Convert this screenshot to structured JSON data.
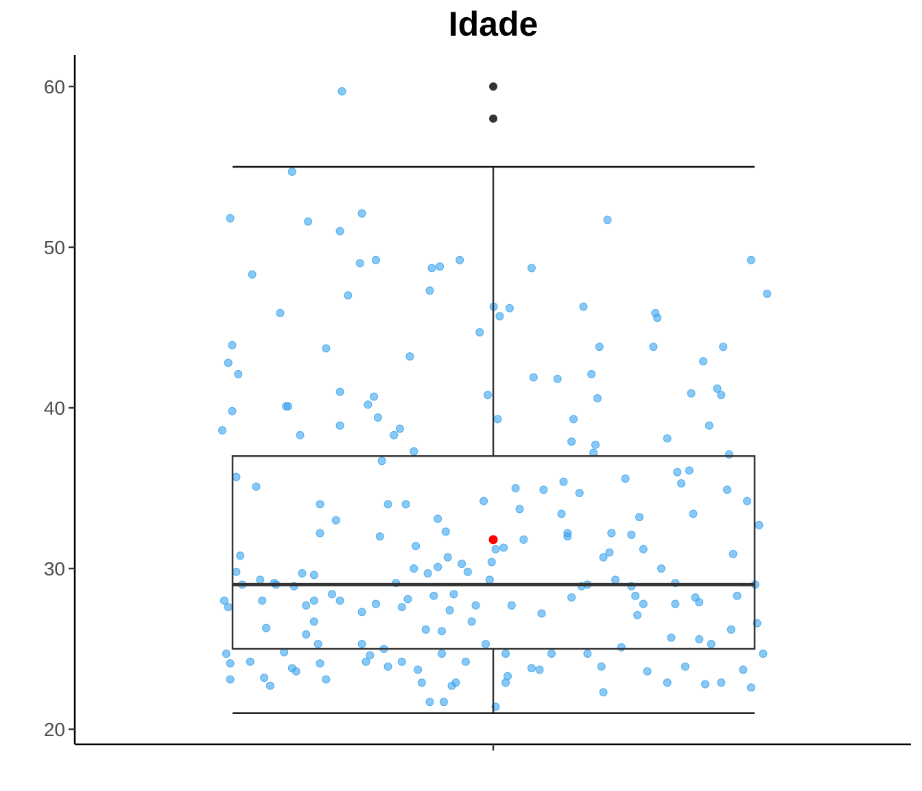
{
  "chart_data": {
    "type": "boxplot",
    "title": "Idade",
    "xlabel": "",
    "ylabel": "",
    "ylim": [
      19,
      62
    ],
    "yticks": [
      20,
      30,
      40,
      50,
      60
    ],
    "xticks": [
      ""
    ],
    "box": {
      "min_whisker": 21,
      "q1": 25,
      "median": 29,
      "q3": 37,
      "max_whisker": 55,
      "mean": 31.8,
      "outliers": [
        58,
        60
      ]
    },
    "jitter_points": [
      [
        -0.65,
        38.6
      ],
      [
        -0.62,
        42.8
      ],
      [
        -0.61,
        51.8
      ],
      [
        -0.6,
        39.8
      ],
      [
        -0.6,
        43.9
      ],
      [
        -0.58,
        35.7
      ],
      [
        -0.57,
        42.1
      ],
      [
        -0.62,
        27.6
      ],
      [
        -0.64,
        28.0
      ],
      [
        -0.63,
        24.7
      ],
      [
        -0.61,
        24.1
      ],
      [
        -0.61,
        23.1
      ],
      [
        -0.58,
        29.8
      ],
      [
        -0.56,
        30.8
      ],
      [
        -0.55,
        29.0
      ],
      [
        -0.5,
        48.3
      ],
      [
        -0.48,
        35.1
      ],
      [
        -0.46,
        29.3
      ],
      [
        -0.45,
        28.0
      ],
      [
        -0.43,
        26.3
      ],
      [
        -0.41,
        22.7
      ],
      [
        -0.38,
        29.0
      ],
      [
        -0.36,
        45.9
      ],
      [
        -0.34,
        24.8
      ],
      [
        -0.33,
        40.1
      ],
      [
        -0.32,
        40.1
      ],
      [
        -0.3,
        54.7
      ],
      [
        -0.3,
        23.8
      ],
      [
        -0.29,
        28.9
      ],
      [
        -0.26,
        38.3
      ],
      [
        -0.25,
        29.7
      ],
      [
        -0.23,
        27.7
      ],
      [
        -0.23,
        25.9
      ],
      [
        -0.22,
        51.6
      ],
      [
        -0.19,
        29.6
      ],
      [
        -0.19,
        28.0
      ],
      [
        -0.19,
        26.7
      ],
      [
        -0.17,
        25.3
      ],
      [
        -0.16,
        34.0
      ],
      [
        -0.16,
        32.2
      ],
      [
        -0.16,
        24.1
      ],
      [
        -0.13,
        43.7
      ],
      [
        -0.13,
        23.1
      ],
      [
        -0.08,
        33.0
      ],
      [
        -0.06,
        41.0
      ],
      [
        -0.06,
        38.9
      ],
      [
        -0.06,
        28.0
      ],
      [
        -0.06,
        51.0
      ],
      [
        -0.05,
        59.7
      ],
      [
        -0.02,
        47.0
      ],
      [
        0.04,
        49.0
      ],
      [
        0.05,
        52.1
      ],
      [
        0.05,
        27.3
      ],
      [
        0.05,
        25.3
      ],
      [
        0.07,
        24.2
      ],
      [
        0.08,
        40.2
      ],
      [
        0.09,
        24.6
      ],
      [
        0.11,
        40.7
      ],
      [
        0.12,
        49.2
      ],
      [
        0.13,
        39.4
      ],
      [
        0.14,
        32.0
      ],
      [
        0.15,
        36.7
      ],
      [
        0.16,
        25.0
      ],
      [
        0.18,
        34.0
      ],
      [
        0.18,
        23.9
      ],
      [
        0.21,
        38.3
      ],
      [
        0.22,
        29.1
      ],
      [
        0.24,
        38.7
      ],
      [
        0.25,
        27.6
      ],
      [
        0.27,
        34.0
      ],
      [
        0.28,
        28.1
      ],
      [
        0.29,
        43.2
      ],
      [
        0.31,
        37.3
      ],
      [
        0.32,
        31.4
      ],
      [
        0.33,
        23.7
      ],
      [
        0.35,
        22.9
      ],
      [
        0.37,
        26.2
      ],
      [
        0.38,
        29.7
      ],
      [
        0.39,
        21.7
      ],
      [
        0.39,
        47.3
      ],
      [
        0.4,
        48.7
      ],
      [
        0.41,
        28.3
      ],
      [
        0.43,
        33.1
      ],
      [
        0.43,
        30.1
      ],
      [
        0.44,
        48.8
      ],
      [
        0.45,
        24.7
      ],
      [
        0.47,
        32.3
      ],
      [
        0.48,
        30.7
      ],
      [
        0.49,
        27.4
      ],
      [
        0.5,
        22.7
      ],
      [
        0.51,
        28.4
      ],
      [
        0.54,
        49.2
      ],
      [
        0.55,
        30.3
      ],
      [
        0.57,
        24.2
      ],
      [
        0.6,
        26.7
      ],
      [
        0.62,
        27.7
      ],
      [
        0.64,
        44.7
      ],
      [
        0.66,
        34.2
      ],
      [
        0.67,
        25.3
      ],
      [
        0.68,
        40.8
      ],
      [
        0.7,
        30.4
      ],
      [
        0.71,
        46.3
      ],
      [
        0.72,
        31.2
      ],
      [
        0.73,
        39.3
      ],
      [
        0.74,
        45.7
      ],
      [
        0.76,
        31.3
      ],
      [
        0.77,
        24.7
      ],
      [
        0.78,
        23.3
      ],
      [
        0.79,
        46.2
      ],
      [
        0.8,
        27.7
      ],
      [
        0.82,
        35.0
      ],
      [
        0.84,
        33.7
      ],
      [
        0.86,
        31.8
      ],
      [
        0.9,
        48.7
      ],
      [
        0.91,
        41.9
      ],
      [
        0.94,
        23.7
      ],
      [
        0.96,
        34.9
      ],
      [
        1.0,
        24.7
      ],
      [
        1.03,
        41.8
      ],
      [
        1.05,
        33.4
      ],
      [
        1.06,
        35.4
      ],
      [
        1.08,
        32.0
      ],
      [
        1.1,
        37.9
      ],
      [
        1.1,
        28.2
      ],
      [
        1.11,
        39.3
      ],
      [
        1.14,
        34.7
      ],
      [
        1.16,
        46.3
      ],
      [
        1.18,
        24.7
      ],
      [
        1.2,
        42.1
      ],
      [
        1.21,
        37.2
      ],
      [
        1.22,
        37.7
      ],
      [
        1.23,
        40.6
      ],
      [
        1.24,
        43.8
      ],
      [
        1.25,
        23.9
      ],
      [
        1.26,
        30.7
      ],
      [
        1.28,
        51.7
      ],
      [
        1.29,
        31.0
      ],
      [
        1.3,
        32.2
      ],
      [
        1.32,
        29.3
      ],
      [
        1.37,
        35.6
      ],
      [
        1.4,
        32.1
      ],
      [
        1.42,
        28.3
      ],
      [
        1.43,
        27.1
      ],
      [
        1.44,
        33.2
      ],
      [
        1.46,
        27.8
      ],
      [
        1.48,
        23.6
      ],
      [
        1.51,
        43.8
      ],
      [
        1.52,
        45.9
      ],
      [
        1.53,
        45.6
      ],
      [
        1.55,
        30.0
      ],
      [
        1.58,
        38.1
      ],
      [
        1.6,
        25.7
      ],
      [
        1.62,
        27.8
      ],
      [
        1.63,
        36.0
      ],
      [
        1.65,
        35.3
      ],
      [
        1.67,
        23.9
      ],
      [
        1.69,
        36.1
      ],
      [
        1.7,
        40.9
      ],
      [
        1.71,
        33.4
      ],
      [
        1.74,
        25.6
      ],
      [
        1.76,
        42.9
      ],
      [
        1.77,
        22.8
      ],
      [
        1.79,
        38.9
      ],
      [
        1.8,
        25.3
      ],
      [
        1.83,
        41.2
      ],
      [
        1.85,
        40.8
      ],
      [
        1.86,
        43.8
      ],
      [
        1.88,
        34.9
      ],
      [
        1.89,
        37.1
      ],
      [
        1.91,
        30.9
      ],
      [
        1.93,
        28.3
      ],
      [
        1.96,
        23.7
      ],
      [
        1.98,
        34.2
      ],
      [
        2.0,
        49.2
      ],
      [
        2.02,
        29.0
      ],
      [
        2.03,
        26.6
      ],
      [
        2.04,
        32.7
      ],
      [
        2.08,
        47.1
      ],
      [
        2.06,
        24.7
      ],
      [
        2.0,
        22.6
      ],
      [
        1.9,
        26.2
      ],
      [
        1.74,
        27.9
      ],
      [
        1.62,
        29.1
      ],
      [
        1.46,
        31.2
      ],
      [
        1.35,
        25.1
      ],
      [
        1.18,
        29.0
      ],
      [
        1.08,
        32.2
      ],
      [
        0.95,
        27.2
      ],
      [
        0.69,
        29.3
      ],
      [
        0.58,
        29.8
      ],
      [
        0.45,
        26.1
      ],
      [
        0.31,
        30.0
      ],
      [
        0.12,
        27.8
      ],
      [
        -0.1,
        28.4
      ],
      [
        -0.28,
        23.6
      ],
      [
        -0.39,
        29.1
      ],
      [
        -0.51,
        24.2
      ],
      [
        -0.44,
        23.2
      ],
      [
        0.25,
        24.2
      ],
      [
        0.52,
        22.9
      ],
      [
        0.77,
        22.9
      ],
      [
        1.26,
        22.3
      ],
      [
        1.58,
        22.9
      ],
      [
        1.85,
        22.9
      ],
      [
        0.9,
        23.8
      ],
      [
        0.72,
        21.4
      ],
      [
        0.46,
        21.7
      ],
      [
        1.72,
        28.2
      ],
      [
        1.4,
        28.9
      ],
      [
        1.15,
        28.9
      ]
    ]
  },
  "colors": {
    "points": "#3ba4ef",
    "box_line": "#333333",
    "mean_point": "#ff0000",
    "outlier": "#333333",
    "axis": "#000000",
    "tick_label": "#4d4d4d"
  }
}
